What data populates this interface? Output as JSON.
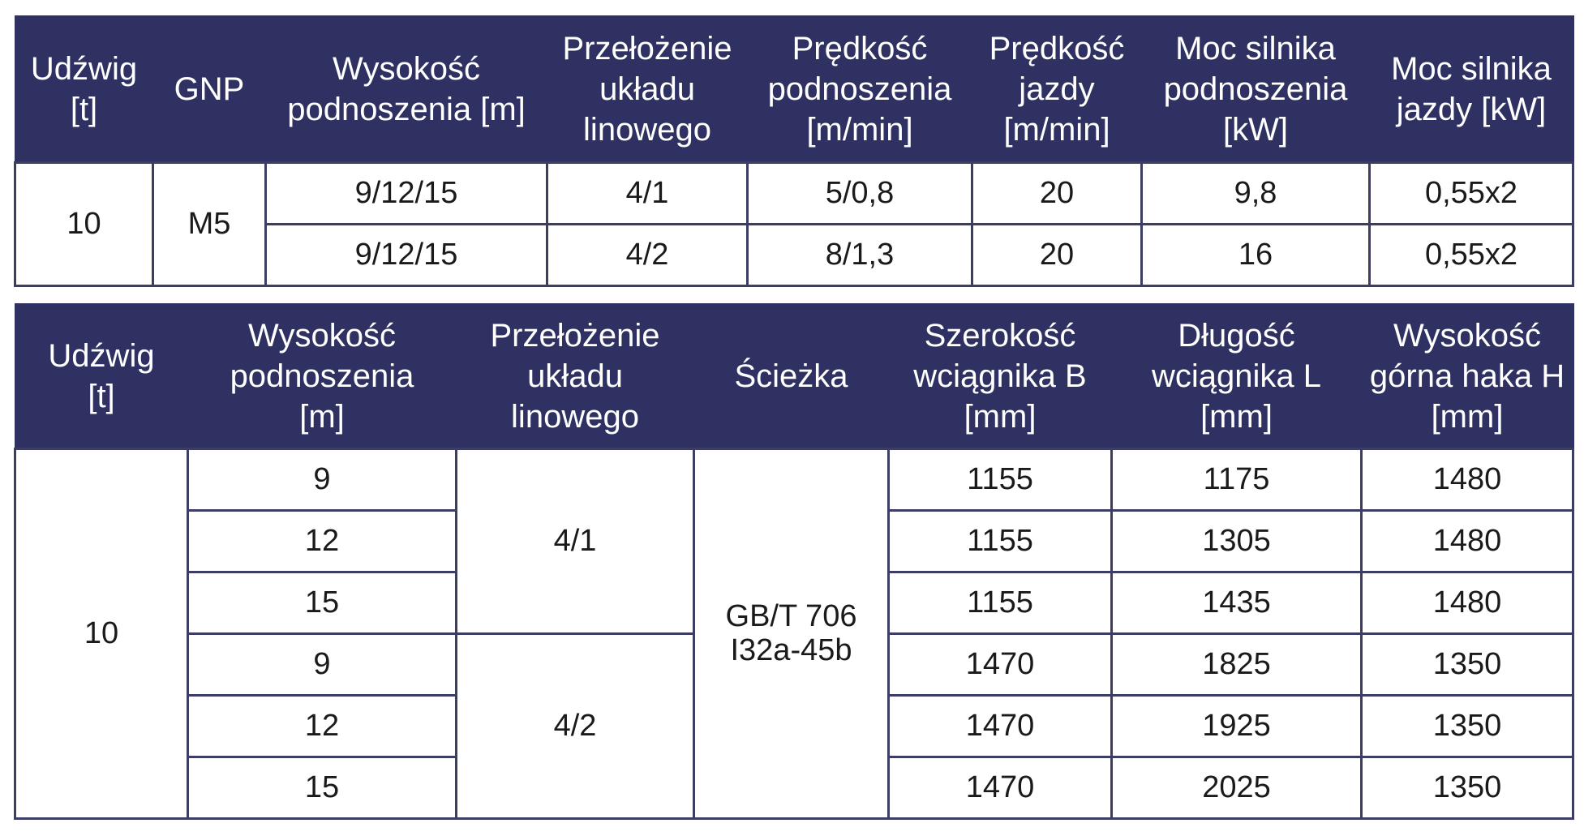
{
  "table1": {
    "headers": [
      [
        "Udźwig",
        "[t]"
      ],
      [
        "GNP"
      ],
      [
        "Wysokość",
        "podnoszenia [m]"
      ],
      [
        "Przełożenie",
        "układu",
        "linowego"
      ],
      [
        "Prędkość",
        "podnoszenia",
        "[m/min]"
      ],
      [
        "Prędkość",
        "jazdy",
        "[m/min]"
      ],
      [
        "Moc silnika",
        "podnoszenia",
        "[kW]"
      ],
      [
        "Moc silnika",
        "jazdy [kW]"
      ]
    ],
    "capacity": "10",
    "gnp": "M5",
    "rows": [
      {
        "height": "9/12/15",
        "reeving": "4/1",
        "lift_speed": "5/0,8",
        "travel_speed": "20",
        "lift_power": "9,8",
        "travel_power": "0,55x2"
      },
      {
        "height": "9/12/15",
        "reeving": "4/2",
        "lift_speed": "8/1,3",
        "travel_speed": "20",
        "lift_power": "16",
        "travel_power": "0,55x2"
      }
    ]
  },
  "table2": {
    "headers": [
      [
        "Udźwig",
        "[t]"
      ],
      [
        "Wysokość",
        "podnoszenia",
        "[m]"
      ],
      [
        "Przełożenie",
        "układu",
        "linowego"
      ],
      [
        "Ścieżka"
      ],
      [
        "Szerokość",
        "wciągnika B",
        "[mm]"
      ],
      [
        "Długość",
        "wciągnika L",
        "[mm]"
      ],
      [
        "Wysokość",
        "górna haka H",
        "[mm]"
      ]
    ],
    "capacity": "10",
    "reeving_group_1": "4/1",
    "reeving_group_2": "4/2",
    "track": [
      "GB/T 706",
      "I32a-45b"
    ],
    "rows": [
      {
        "height": "9",
        "width_b": "1155",
        "length_l": "1175",
        "hook_h": "1480"
      },
      {
        "height": "12",
        "width_b": "1155",
        "length_l": "1305",
        "hook_h": "1480"
      },
      {
        "height": "15",
        "width_b": "1155",
        "length_l": "1435",
        "hook_h": "1480"
      },
      {
        "height": "9",
        "width_b": "1470",
        "length_l": "1825",
        "hook_h": "1350"
      },
      {
        "height": "12",
        "width_b": "1470",
        "length_l": "1925",
        "hook_h": "1350"
      },
      {
        "height": "15",
        "width_b": "1470",
        "length_l": "2025",
        "hook_h": "1350"
      }
    ]
  },
  "colors": {
    "header_bg": "#2f3162",
    "header_text": "#ffffff",
    "border": "#3b3d63"
  }
}
